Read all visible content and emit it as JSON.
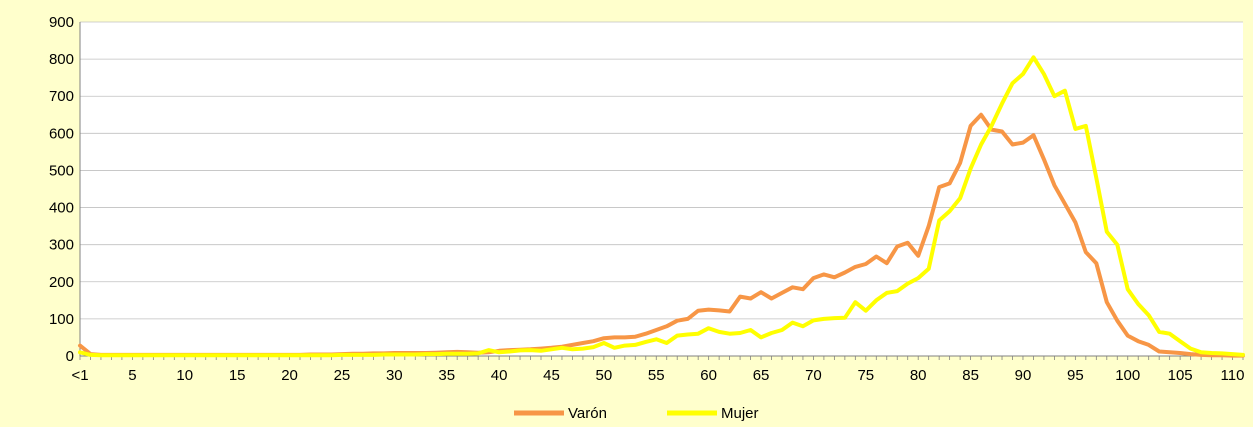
{
  "chart_data": {
    "type": "line",
    "title": "",
    "xlabel": "",
    "ylabel": "",
    "ylim": [
      0,
      900
    ],
    "y_ticks": [
      0,
      100,
      200,
      300,
      400,
      500,
      600,
      700,
      800,
      900
    ],
    "x_tick_labels": [
      {
        "x": 0,
        "label": "<1"
      },
      {
        "x": 5,
        "label": "5"
      },
      {
        "x": 10,
        "label": "10"
      },
      {
        "x": 15,
        "label": "15"
      },
      {
        "x": 20,
        "label": "20"
      },
      {
        "x": 25,
        "label": "25"
      },
      {
        "x": 30,
        "label": "30"
      },
      {
        "x": 35,
        "label": "35"
      },
      {
        "x": 40,
        "label": "40"
      },
      {
        "x": 45,
        "label": "45"
      },
      {
        "x": 50,
        "label": "50"
      },
      {
        "x": 55,
        "label": "55"
      },
      {
        "x": 60,
        "label": "60"
      },
      {
        "x": 65,
        "label": "65"
      },
      {
        "x": 70,
        "label": "70"
      },
      {
        "x": 75,
        "label": "75"
      },
      {
        "x": 80,
        "label": "80"
      },
      {
        "x": 85,
        "label": "85"
      },
      {
        "x": 90,
        "label": "90"
      },
      {
        "x": 95,
        "label": "95"
      },
      {
        "x": 100,
        "label": "100"
      },
      {
        "x": 105,
        "label": "105"
      },
      {
        "x": 110,
        "label": "110"
      }
    ],
    "xlim": [
      0,
      111
    ],
    "grid": "horizontal",
    "legend": "bottom",
    "series": [
      {
        "name": "Varón",
        "color": "#F79646",
        "values": [
          28,
          5,
          3,
          3,
          3,
          3,
          3,
          3,
          3,
          3,
          3,
          3,
          3,
          3,
          3,
          3,
          3,
          3,
          3,
          3,
          3,
          3,
          4,
          4,
          4,
          5,
          6,
          6,
          7,
          7,
          8,
          8,
          8,
          8,
          9,
          10,
          11,
          10,
          9,
          10,
          14,
          16,
          17,
          18,
          20,
          22,
          25,
          30,
          35,
          40,
          48,
          50,
          50,
          52,
          60,
          70,
          80,
          95,
          100,
          122,
          125,
          123,
          120,
          160,
          155,
          172,
          155,
          170,
          185,
          180,
          210,
          220,
          212,
          225,
          240,
          248,
          268,
          250,
          295,
          305,
          270,
          350,
          455,
          465,
          520,
          620,
          650,
          610,
          605,
          570,
          575,
          595,
          530,
          460,
          410,
          360,
          280,
          250,
          145,
          95,
          55,
          40,
          30,
          12,
          10,
          8,
          5,
          3,
          2,
          2,
          1,
          1
        ]
      },
      {
        "name": "Mujer",
        "color": "#FFFF00",
        "values": [
          10,
          3,
          2,
          2,
          2,
          2,
          2,
          2,
          2,
          2,
          2,
          2,
          2,
          2,
          2,
          2,
          2,
          2,
          2,
          2,
          2,
          2,
          2,
          2,
          2,
          3,
          3,
          3,
          3,
          4,
          4,
          4,
          4,
          5,
          5,
          6,
          6,
          6,
          7,
          16,
          10,
          12,
          15,
          16,
          14,
          18,
          22,
          18,
          20,
          24,
          35,
          22,
          28,
          30,
          38,
          45,
          35,
          55,
          58,
          60,
          75,
          65,
          60,
          62,
          70,
          50,
          62,
          70,
          90,
          80,
          96,
          100,
          102,
          103,
          145,
          122,
          150,
          170,
          175,
          195,
          210,
          235,
          365,
          390,
          425,
          505,
          570,
          620,
          680,
          735,
          760,
          805,
          760,
          700,
          715,
          612,
          620,
          480,
          335,
          300,
          180,
          140,
          110,
          65,
          60,
          40,
          20,
          10,
          8,
          7,
          5,
          3
        ]
      }
    ]
  }
}
